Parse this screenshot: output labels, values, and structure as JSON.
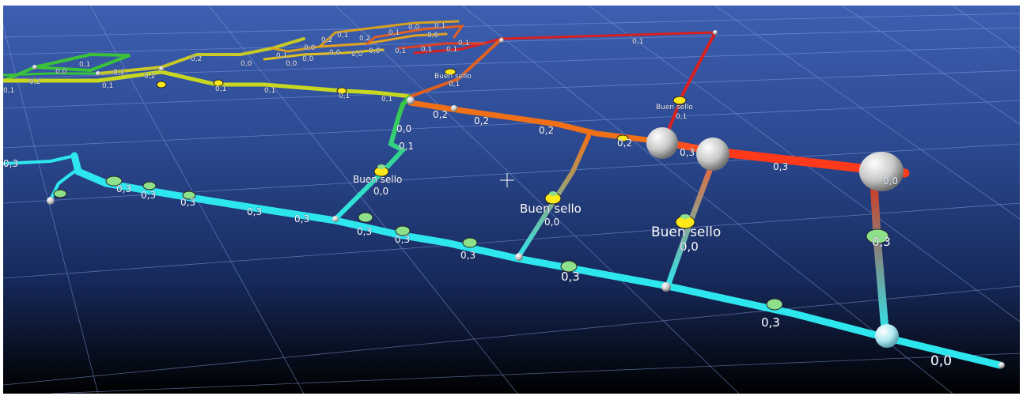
{
  "colors": {
    "sky_top": "#3d5fb0",
    "sky_bottom": "#000000",
    "grid": "#8aa4e6",
    "pipe_cyan": "#2ee6ee",
    "pipe_red": "#d81c1c",
    "pipe_orange": "#f07018",
    "pipe_yellow": "#e8e020",
    "pipe_green": "#3ac23a",
    "node_white": "#e8e8e8",
    "valve_yellow": "#ffe81a",
    "valve_green": "#8fe08a"
  },
  "labels": {
    "seal_1": "Buen sello",
    "seal_1_val": "0,0",
    "seal_2": "Buen sello",
    "seal_2_val": "0,0",
    "seal_3": "Buen sello",
    "seal_3_val": "0,0",
    "seal_top": "Buen sello",
    "seal_top_val": "0,1",
    "seal_top_left": "Buen sello",
    "seal_top_left_val": "0,1",
    "end_val": "0,0",
    "riser_val": "0,3",
    "big_node_val": "0,0",
    "cyan_vals": [
      "0,3",
      "0,3",
      "0,3",
      "0,3",
      "0,3",
      "0,3",
      "0,3",
      "0,3",
      "0,3",
      "0,3",
      "0,3"
    ],
    "red_vals": [
      "0,3",
      "0,3",
      "0,2",
      "0,2",
      "0,2",
      "0,2",
      "0,1"
    ],
    "green_vals": [
      "0,0",
      "0,1",
      "0,1",
      "0,1",
      "0,1",
      "0,1",
      "0,2",
      "0,0",
      "0,1"
    ],
    "far_vals": [
      "0,1",
      "0,1",
      "0,2",
      "0,2",
      "0,1",
      "0,0",
      "0,1",
      "0,0",
      "0,2",
      "0,1",
      "0,2",
      "0,1",
      "0,0",
      "0,1",
      "0,0",
      "0,0",
      "0,0",
      "0,1",
      "0,6",
      "0,1",
      "0,1",
      "0,0",
      "0,0",
      "0,1"
    ]
  }
}
